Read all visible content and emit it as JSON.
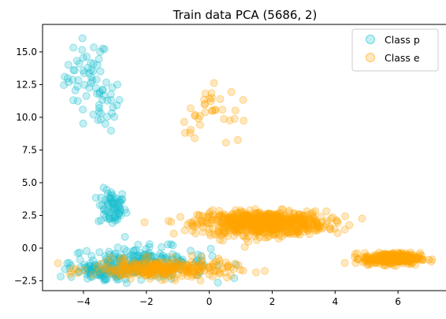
{
  "chart_data": {
    "type": "scatter",
    "title": "Train data PCA (5686, 2)",
    "xlabel": "",
    "ylabel": "",
    "xlim": [
      -5.3,
      7.55
    ],
    "ylim": [
      -3.25,
      17.1
    ],
    "xticks": [
      -4,
      -2,
      0,
      2,
      4,
      6
    ],
    "yticks": [
      -2.5,
      0.0,
      2.5,
      5.0,
      7.5,
      10.0,
      12.5,
      15.0
    ],
    "ytick_labels": [
      "−2.5",
      "0.0",
      "2.5",
      "5.0",
      "7.5",
      "10.0",
      "12.5",
      "15.0"
    ],
    "xtick_labels": [
      "−4",
      "−2",
      "0",
      "2",
      "4",
      "6"
    ],
    "grid": false,
    "legend": "top-right",
    "series": [
      {
        "name": "Class p",
        "color": "#17becf",
        "alpha": 0.25,
        "clusters": [
          {
            "cx": -3.9,
            "cy": 13.2,
            "sx": 0.35,
            "sy": 1.4,
            "n": 45
          },
          {
            "cx": -3.3,
            "cy": 11.0,
            "sx": 0.25,
            "sy": 1.0,
            "n": 28
          },
          {
            "cx": -3.1,
            "cy": 3.1,
            "sx": 0.22,
            "sy": 0.7,
            "n": 70
          },
          {
            "cx": -2.2,
            "cy": -1.1,
            "sx": 1.1,
            "sy": 0.6,
            "n": 230
          },
          {
            "cx": -3.4,
            "cy": -1.9,
            "sx": 0.5,
            "sy": 0.3,
            "n": 70
          }
        ]
      },
      {
        "name": "Class e",
        "color": "#ffa500",
        "alpha": 0.25,
        "clusters": [
          {
            "cx": 0.1,
            "cy": 11.2,
            "sx": 0.25,
            "sy": 1.1,
            "n": 18
          },
          {
            "cx": 0.8,
            "cy": 9.6,
            "sx": 0.25,
            "sy": 0.9,
            "n": 10
          },
          {
            "cx": -0.6,
            "cy": 10.2,
            "sx": 0.2,
            "sy": 1.0,
            "n": 8
          },
          {
            "cx": 1.7,
            "cy": 1.9,
            "sx": 1.0,
            "sy": 0.45,
            "n": 700
          },
          {
            "cx": -1.5,
            "cy": -1.6,
            "sx": 1.1,
            "sy": 0.35,
            "n": 280
          },
          {
            "cx": 5.8,
            "cy": -0.8,
            "sx": 0.45,
            "sy": 0.22,
            "n": 320
          }
        ]
      }
    ]
  }
}
